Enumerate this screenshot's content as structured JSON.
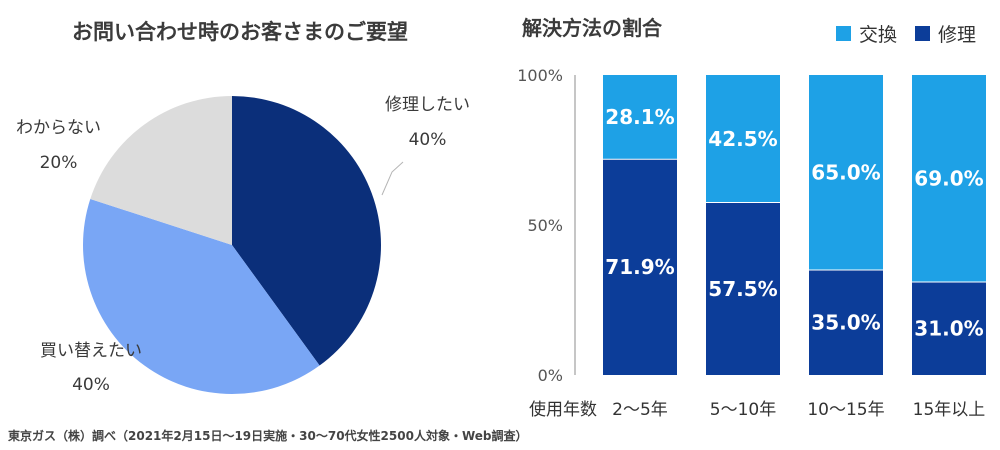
{
  "chart_data": [
    {
      "type": "pie",
      "title": "お問い合わせ時のお客さまのご要望",
      "slices": [
        {
          "label": "修理したい",
          "value": 40,
          "value_label": "40%",
          "color": "#0b2f7a"
        },
        {
          "label": "買い替えたい",
          "value": 40,
          "value_label": "40%",
          "color": "#79a6f5"
        },
        {
          "label": "わからない",
          "value": 20,
          "value_label": "20%",
          "color": "#dcdcdc"
        }
      ]
    },
    {
      "type": "bar",
      "stacked": true,
      "title": "解決方法の割合",
      "xlabel": "使用年数",
      "categories": [
        "2〜5年",
        "5〜10年",
        "10〜15年",
        "15年以上"
      ],
      "series": [
        {
          "name": "修理",
          "values": [
            71.9,
            57.5,
            35.0,
            31.0
          ],
          "labels": [
            "71.9%",
            "57.5%",
            "35.0%",
            "31.0%"
          ],
          "color": "#0c3d99"
        },
        {
          "name": "交換",
          "values": [
            28.1,
            42.5,
            65.0,
            69.0
          ],
          "labels": [
            "28.1%",
            "42.5%",
            "65.0%",
            "69.0%"
          ],
          "color": "#1ea1e6"
        }
      ],
      "ylim": [
        0,
        100
      ],
      "yticks": [
        "0%",
        "50%",
        "100%"
      ],
      "legend_position": "top-right",
      "grid": false
    }
  ],
  "source_note": "東京ガス（株）調べ（2021年2月15日〜19日実施・30〜70代女性2500人対象・Web調査）"
}
